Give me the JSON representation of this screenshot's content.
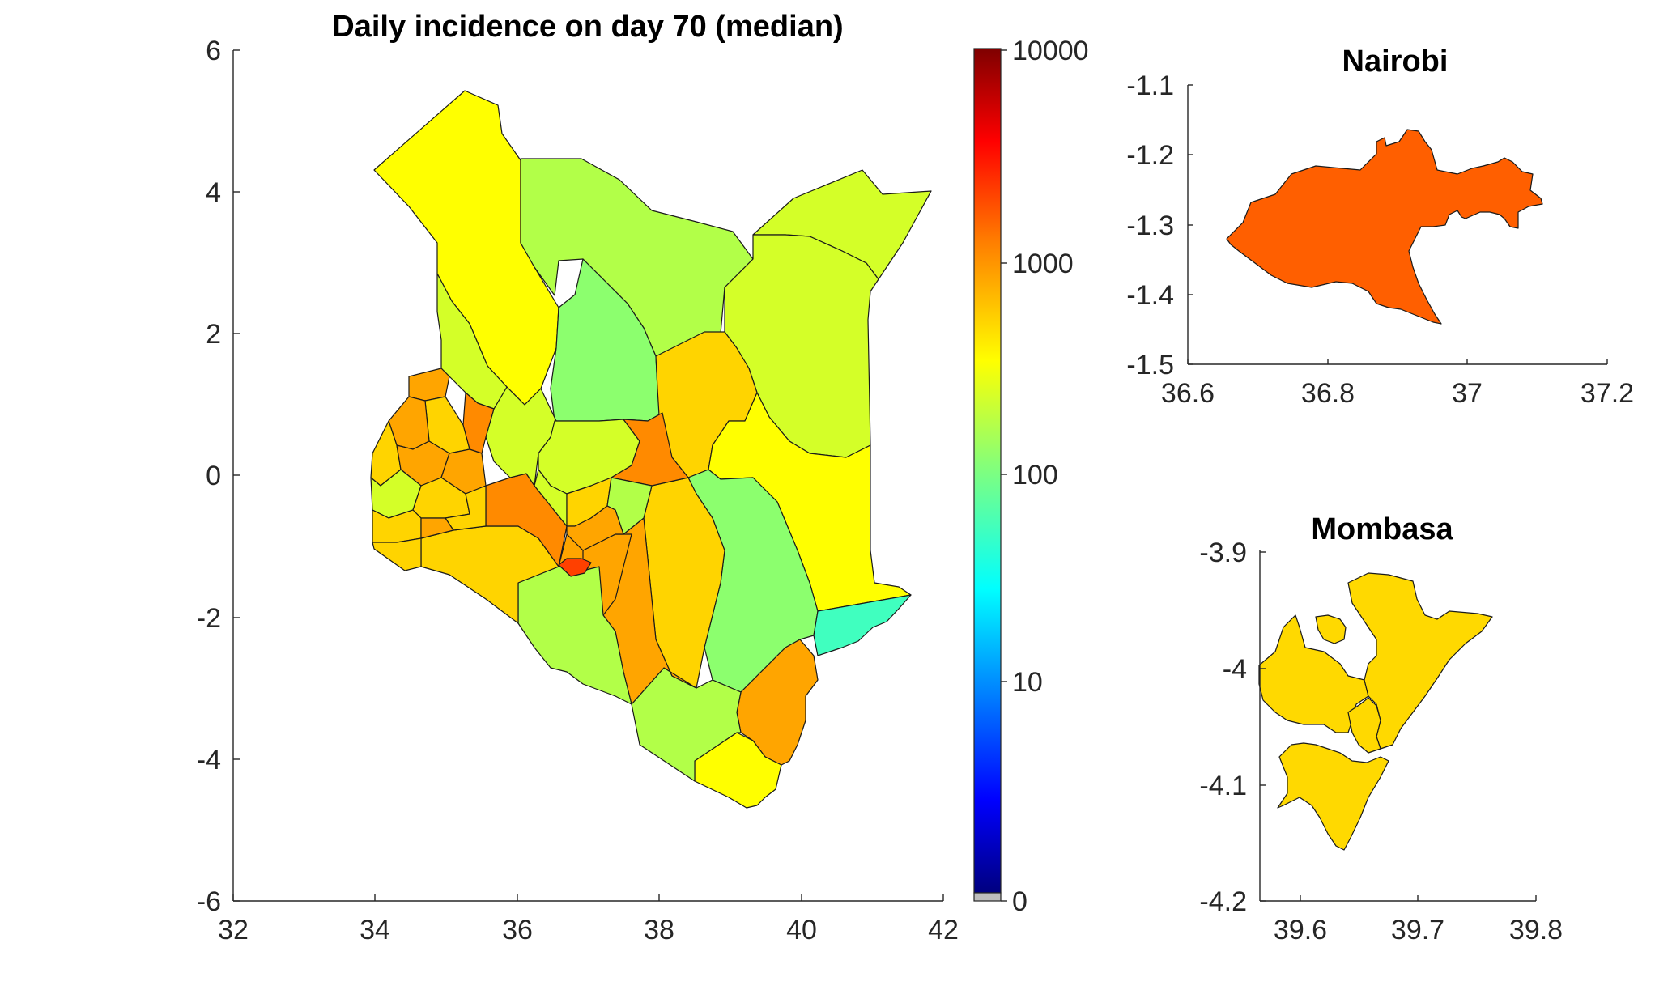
{
  "main_map": {
    "title": "Daily incidence on day 70 (median)",
    "xticks": [
      "32",
      "34",
      "36",
      "38",
      "40",
      "42"
    ],
    "yticks": [
      "6",
      "4",
      "2",
      "0",
      "-2",
      "-4",
      "-6"
    ]
  },
  "colorbar": {
    "scale": "log",
    "ticks": [
      "10000",
      "1000",
      "100",
      "10",
      "0"
    ],
    "colors": [
      "#00007f",
      "#0000ff",
      "#007fff",
      "#00ffff",
      "#7fff7f",
      "#ffff00",
      "#ff7f00",
      "#ff0000",
      "#7f0000"
    ],
    "zero_color": "#bdbdbd"
  },
  "nairobi_inset": {
    "title": "Nairobi",
    "xticks": [
      "36.6",
      "36.8",
      "37",
      "37.2"
    ],
    "yticks": [
      "-1.1",
      "-1.2",
      "-1.3",
      "-1.4",
      "-1.5"
    ],
    "fill": "#ff5f00"
  },
  "mombasa_inset": {
    "title": "Mombasa",
    "xticks": [
      "39.6",
      "39.7",
      "39.8"
    ],
    "yticks": [
      "-3.9",
      "-4",
      "-4.1",
      "-4.2"
    ],
    "fill": "#ffd900"
  },
  "region_colors": {
    "yellow": "#ffff00",
    "yellow_green": "#d4ff28",
    "lime": "#b2ff48",
    "light_green": "#8cff6e",
    "gold": "#ffd400",
    "orange": "#ffa500",
    "dark_orange": "#ff8a00",
    "red_orange": "#ff4000",
    "aqua": "#40ffbf"
  }
}
